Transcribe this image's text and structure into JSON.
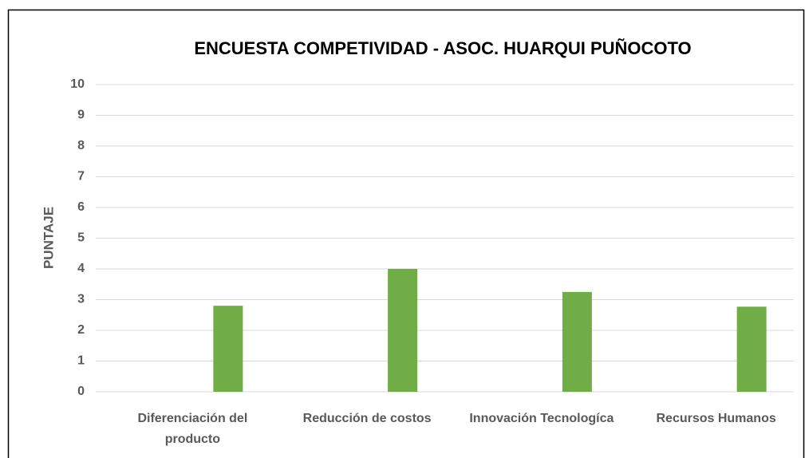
{
  "chart_data": {
    "type": "bar",
    "title": "ENCUESTA COMPETIVIDAD - ASOC. HUARQUI PUÑOCOTO",
    "y_label": "PUNTAJE",
    "categories": [
      "Diferenciación del producto",
      "Reducción de costos",
      "Innovación Tecnologíca",
      "Recursos Humanos"
    ],
    "values": [
      2.8,
      4.0,
      3.25,
      2.77
    ],
    "color": "#70ad47",
    "ylim": [
      0,
      10
    ],
    "yticks": [
      0,
      1,
      2,
      3,
      4,
      5,
      6,
      7,
      8,
      9,
      10
    ],
    "grid": true
  }
}
